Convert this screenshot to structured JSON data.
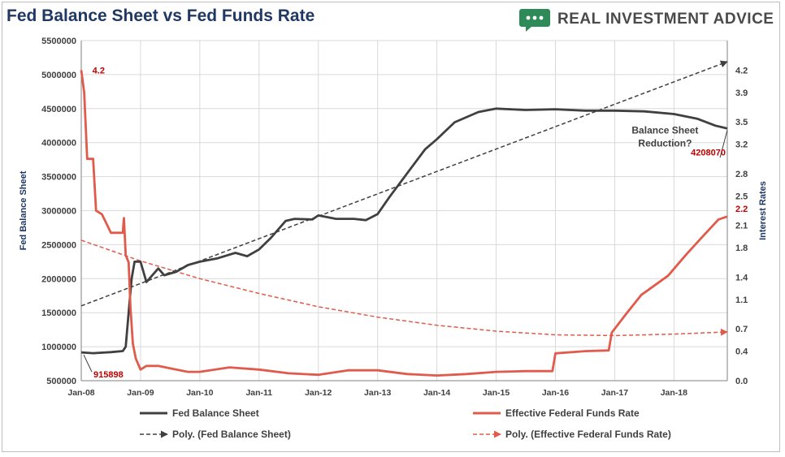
{
  "chart_data": {
    "type": "line",
    "title": "Fed Balance Sheet vs Fed Funds Rate",
    "brand": "REAL INVESTMENT ADVICE",
    "ylabel_left": "Fed Balance Sheet",
    "ylabel_right": "Interest Rates",
    "xlabel": "",
    "y_left_range": [
      500000,
      5500000
    ],
    "y_left_ticks": [
      "5500000",
      "5000000",
      "4500000",
      "4000000",
      "3500000",
      "3000000",
      "2500000",
      "2000000",
      "1500000",
      "1000000",
      "500000"
    ],
    "y_right_range": [
      0.0,
      4.6
    ],
    "y_right_ticks": [
      "4.2",
      "3.9",
      "3.5",
      "3.2",
      "2.8",
      "2.5",
      "2.1",
      "1.8",
      "1.4",
      "1.1",
      "0.7",
      "0.4",
      "0.0"
    ],
    "x_range": [
      2008.0,
      2018.9
    ],
    "x_ticks": [
      {
        "label": "Jan-08",
        "x": 2008
      },
      {
        "label": "Jan-09",
        "x": 2009
      },
      {
        "label": "Jan-10",
        "x": 2010
      },
      {
        "label": "Jan-11",
        "x": 2011
      },
      {
        "label": "Jan-12",
        "x": 2012
      },
      {
        "label": "Jan-13",
        "x": 2013
      },
      {
        "label": "Jan-14",
        "x": 2014
      },
      {
        "label": "Jan-15",
        "x": 2015
      },
      {
        "label": "Jan-16",
        "x": 2016
      },
      {
        "label": "Jan-17",
        "x": 2017
      },
      {
        "label": "Jan-18",
        "x": 2018
      }
    ],
    "grid": true,
    "legend_position": "bottom",
    "series": [
      {
        "name": "Fed Balance Sheet",
        "axis": "left",
        "color": "#404040",
        "style": "solid",
        "points": [
          [
            2008.0,
            915898
          ],
          [
            2008.2,
            905000
          ],
          [
            2008.5,
            920000
          ],
          [
            2008.7,
            935000
          ],
          [
            2008.75,
            1000000
          ],
          [
            2008.8,
            1500000
          ],
          [
            2008.85,
            2000000
          ],
          [
            2008.9,
            2250000
          ],
          [
            2009.0,
            2250000
          ],
          [
            2009.1,
            1950000
          ],
          [
            2009.2,
            2050000
          ],
          [
            2009.3,
            2150000
          ],
          [
            2009.4,
            2050000
          ],
          [
            2009.6,
            2100000
          ],
          [
            2009.8,
            2200000
          ],
          [
            2010.0,
            2250000
          ],
          [
            2010.3,
            2300000
          ],
          [
            2010.6,
            2380000
          ],
          [
            2010.8,
            2330000
          ],
          [
            2011.0,
            2430000
          ],
          [
            2011.2,
            2600000
          ],
          [
            2011.45,
            2850000
          ],
          [
            2011.6,
            2880000
          ],
          [
            2011.9,
            2870000
          ],
          [
            2012.0,
            2930000
          ],
          [
            2012.3,
            2880000
          ],
          [
            2012.6,
            2880000
          ],
          [
            2012.8,
            2860000
          ],
          [
            2013.0,
            2950000
          ],
          [
            2013.2,
            3200000
          ],
          [
            2013.5,
            3550000
          ],
          [
            2013.8,
            3900000
          ],
          [
            2014.0,
            4050000
          ],
          [
            2014.3,
            4300000
          ],
          [
            2014.7,
            4450000
          ],
          [
            2015.0,
            4500000
          ],
          [
            2015.5,
            4480000
          ],
          [
            2016.0,
            4490000
          ],
          [
            2016.5,
            4470000
          ],
          [
            2017.0,
            4470000
          ],
          [
            2017.5,
            4460000
          ],
          [
            2018.0,
            4420000
          ],
          [
            2018.4,
            4350000
          ],
          [
            2018.7,
            4250000
          ],
          [
            2018.9,
            4208070
          ]
        ]
      },
      {
        "name": "Effective Federal Funds Rate",
        "axis": "right",
        "color": "#e05b4b",
        "style": "solid",
        "points": [
          [
            2008.0,
            4.2
          ],
          [
            2008.05,
            3.9
          ],
          [
            2008.1,
            3.0
          ],
          [
            2008.15,
            3.0
          ],
          [
            2008.2,
            3.0
          ],
          [
            2008.25,
            2.3
          ],
          [
            2008.35,
            2.25
          ],
          [
            2008.5,
            2.0
          ],
          [
            2008.6,
            2.0
          ],
          [
            2008.7,
            2.0
          ],
          [
            2008.72,
            2.2
          ],
          [
            2008.75,
            1.7
          ],
          [
            2008.8,
            1.6
          ],
          [
            2008.83,
            1.0
          ],
          [
            2008.87,
            0.5
          ],
          [
            2008.92,
            0.3
          ],
          [
            2009.0,
            0.15
          ],
          [
            2009.1,
            0.2
          ],
          [
            2009.3,
            0.2
          ],
          [
            2009.6,
            0.15
          ],
          [
            2009.8,
            0.12
          ],
          [
            2010.0,
            0.12
          ],
          [
            2010.5,
            0.18
          ],
          [
            2011.0,
            0.15
          ],
          [
            2011.5,
            0.1
          ],
          [
            2012.0,
            0.08
          ],
          [
            2012.5,
            0.14
          ],
          [
            2013.0,
            0.14
          ],
          [
            2013.5,
            0.09
          ],
          [
            2014.0,
            0.07
          ],
          [
            2014.5,
            0.09
          ],
          [
            2015.0,
            0.12
          ],
          [
            2015.5,
            0.13
          ],
          [
            2015.95,
            0.13
          ],
          [
            2016.0,
            0.37
          ],
          [
            2016.5,
            0.4
          ],
          [
            2016.9,
            0.41
          ],
          [
            2016.95,
            0.65
          ],
          [
            2017.2,
            0.91
          ],
          [
            2017.45,
            1.16
          ],
          [
            2017.9,
            1.42
          ],
          [
            2018.2,
            1.7
          ],
          [
            2018.45,
            1.92
          ],
          [
            2018.75,
            2.18
          ],
          [
            2018.9,
            2.22
          ]
        ]
      },
      {
        "name": "Poly. (Fed Balance Sheet)",
        "axis": "left",
        "color": "#404040",
        "style": "dashed",
        "points": [
          [
            2008.0,
            1600000
          ],
          [
            2018.9,
            5190000
          ]
        ]
      },
      {
        "name": "Poly. (Effective Federal Funds Rate)",
        "axis": "right",
        "color": "#e05b4b",
        "style": "dashed",
        "points": [
          [
            2008.0,
            1.9
          ],
          [
            2009.0,
            1.62
          ],
          [
            2010.0,
            1.38
          ],
          [
            2011.0,
            1.18
          ],
          [
            2012.0,
            1.0
          ],
          [
            2013.0,
            0.86
          ],
          [
            2014.0,
            0.75
          ],
          [
            2015.0,
            0.67
          ],
          [
            2016.0,
            0.62
          ],
          [
            2017.0,
            0.61
          ],
          [
            2018.0,
            0.63
          ],
          [
            2018.9,
            0.66
          ]
        ]
      }
    ],
    "annotations": [
      {
        "text": "4.2",
        "x": 2008.05,
        "y": 4.2,
        "axis": "right",
        "color": "#c00000"
      },
      {
        "text": "915898",
        "x": 2008.0,
        "y": 915898,
        "axis": "left",
        "color": "#c00000"
      },
      {
        "text": "Balance Sheet",
        "x": 2017.85,
        "y": 4180000,
        "axis": "left",
        "color": "#404040"
      },
      {
        "text": "Reduction?",
        "x": 2017.85,
        "y": 3990000,
        "axis": "left",
        "color": "#404040"
      },
      {
        "text": "4208070",
        "x": 2018.9,
        "y": 4208070,
        "axis": "left",
        "color": "#c00000"
      },
      {
        "text": "2.2",
        "x": 2018.9,
        "y": 2.22,
        "axis": "right",
        "color": "#c00000"
      }
    ]
  }
}
